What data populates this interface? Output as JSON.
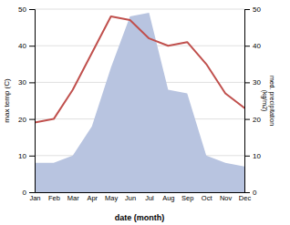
{
  "chart_data": {
    "type": "line",
    "xlabel": "date (month)",
    "ylabel": "max temp (C)",
    "y2label": "med. precipitation\n(kg/m2)",
    "categories": [
      "Jan",
      "Feb",
      "Mar",
      "Apr",
      "May",
      "Jun",
      "Jul",
      "Aug",
      "Sep",
      "Oct",
      "Nov",
      "Dec"
    ],
    "series": [
      {
        "type": "line",
        "color": "#c0504d",
        "values": [
          19,
          20,
          28,
          38,
          48,
          47,
          42,
          40,
          41,
          35,
          27,
          23
        ]
      },
      {
        "type": "area",
        "axis": "y2",
        "color": "#b8c4e0",
        "values": [
          8,
          8,
          10,
          18,
          34,
          48,
          49,
          28,
          27,
          10,
          8,
          7
        ]
      }
    ],
    "ylim": [
      0,
      50
    ],
    "yticks": [
      0,
      10,
      20,
      30,
      40,
      50
    ],
    "y2lim": [
      0,
      50
    ],
    "y2ticks": [
      0,
      10,
      20,
      30,
      40,
      50
    ],
    "grid": true
  }
}
